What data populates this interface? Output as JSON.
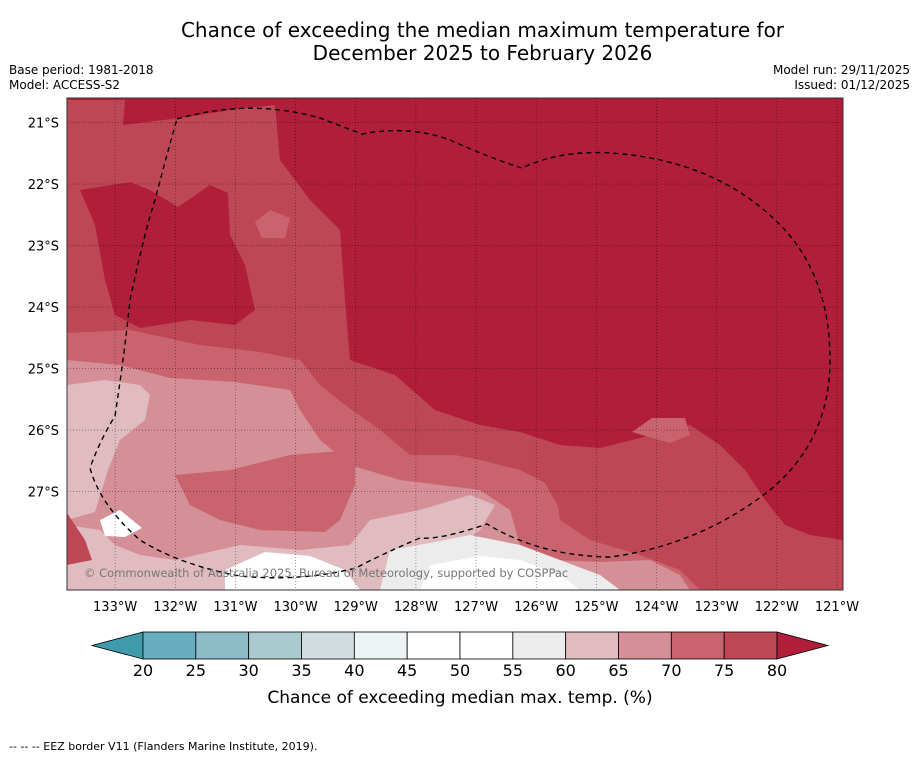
{
  "title_line1": "Chance of exceeding the median maximum temperature for",
  "title_line2": "December 2025 to February 2026",
  "meta": {
    "base_period": "Base period: 1981-2018",
    "model": "Model: ACCESS-S2",
    "model_run": "Model run: 29/11/2025",
    "issued": "Issued: 01/12/2025"
  },
  "copyright": "© Commonwealth of Australia 2025, Bureau of Meteorology, supported by COSPPac",
  "footnote": "--  --  -- EEZ border V11 (Flanders Marine Institute, 2019).",
  "colors": {
    "c_lt20": "#3f9aac",
    "c20_25": "#6aadbf",
    "c25_30": "#8ebcc8",
    "c30_35": "#aacacf",
    "c35_40": "#d0dce0",
    "c40_45": "#edf2f4",
    "c45_50": "#ffffff",
    "c50_55": "#ffffff",
    "c55_60": "#ececec",
    "c60_65": "#e0bcc1",
    "c65_70": "#d48f97",
    "c70_75": "#c9646f",
    "c75_80": "#be4756",
    "c_gt80": "#b01e39"
  },
  "chart_data": {
    "type": "heatmap",
    "title": "Chance of exceeding the median maximum temperature for December 2025 to February 2026",
    "units": "%",
    "lon_range": [
      -133.8,
      -120.9
    ],
    "lat_range": [
      -28.6,
      -20.6
    ],
    "x_ticks": [
      -133,
      -132,
      -131,
      -130,
      -129,
      -128,
      -127,
      -126,
      -125,
      -124,
      -123,
      -122,
      -121
    ],
    "x_tick_labels": [
      "133°W",
      "132°W",
      "131°W",
      "130°W",
      "129°W",
      "128°W",
      "127°W",
      "126°W",
      "125°W",
      "124°W",
      "123°W",
      "122°W",
      "121°W"
    ],
    "y_ticks": [
      -21,
      -22,
      -23,
      -24,
      -25,
      -26,
      -27
    ],
    "y_tick_labels": [
      "21°S",
      "22°S",
      "23°S",
      "24°S",
      "25°S",
      "26°S",
      "27°S"
    ],
    "colorbar": {
      "label": "Chance of exceeding median max. temp. (%)",
      "boundaries": [
        20,
        25,
        30,
        35,
        40,
        45,
        50,
        55,
        60,
        65,
        70,
        75,
        80
      ],
      "tick_labels": [
        "20",
        "25",
        "30",
        "35",
        "40",
        "45",
        "50",
        "55",
        "60",
        "65",
        "70",
        "75",
        "80"
      ],
      "extend": "both"
    },
    "regions": [
      {
        "class": ">80",
        "description": "north and east of map"
      },
      {
        "class": "75-80",
        "description": "west-central and southern band"
      },
      {
        "class": "70-75",
        "description": "south-west band"
      },
      {
        "class": "65-70",
        "description": "south-central"
      },
      {
        "class": "60-65",
        "description": "south-west corner"
      },
      {
        "class": "45-55",
        "description": "far south-west and south-central"
      }
    ],
    "eez_border": "dashed line"
  }
}
